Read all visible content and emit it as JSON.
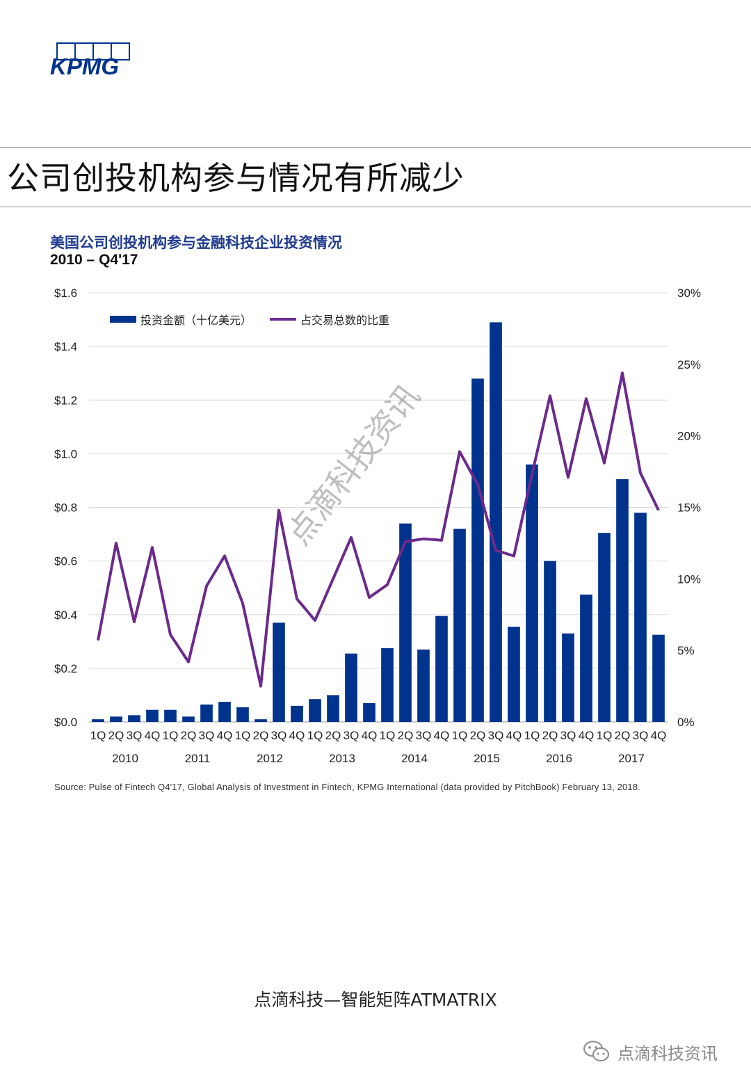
{
  "logo": {
    "text": "KPMG",
    "color": "#00338d"
  },
  "page": {
    "title": "公司创投机构参与情况有所减少"
  },
  "chart_data": {
    "type": "bar+line",
    "title": "美国公司创投机构参与金融科技企业投资情况",
    "subtitle": "2010 – Q4'17",
    "categories": [
      "1Q",
      "2Q",
      "3Q",
      "4Q",
      "1Q",
      "2Q",
      "3Q",
      "4Q",
      "1Q",
      "2Q",
      "3Q",
      "4Q",
      "1Q",
      "2Q",
      "3Q",
      "4Q",
      "1Q",
      "2Q",
      "3Q",
      "4Q",
      "1Q",
      "2Q",
      "3Q",
      "4Q",
      "1Q",
      "2Q",
      "3Q",
      "4Q",
      "1Q",
      "2Q",
      "3Q",
      "4Q"
    ],
    "years": [
      "2010",
      "2011",
      "2012",
      "2013",
      "2014",
      "2015",
      "2016",
      "2017"
    ],
    "series": [
      {
        "name": "投资金额（十亿美元）",
        "type": "bar",
        "axis": "left",
        "color": "#00338d",
        "values": [
          0.01,
          0.02,
          0.025,
          0.045,
          0.045,
          0.02,
          0.065,
          0.075,
          0.055,
          0.01,
          0.37,
          0.06,
          0.085,
          0.1,
          0.255,
          0.07,
          0.275,
          0.74,
          0.27,
          0.395,
          0.72,
          1.28,
          1.49,
          0.355,
          0.96,
          0.6,
          0.33,
          0.475,
          0.705,
          0.905,
          0.78,
          0.325
        ]
      },
      {
        "name": "占交易总数的比重",
        "type": "line",
        "axis": "right",
        "color": "#6b2a8c",
        "values": [
          5.7,
          12.5,
          7.0,
          12.2,
          6.1,
          4.2,
          9.5,
          11.6,
          8.3,
          2.5,
          14.8,
          8.6,
          7.1,
          10.0,
          12.9,
          8.7,
          9.6,
          12.6,
          12.8,
          12.7,
          18.9,
          16.6,
          12.0,
          11.6,
          17.3,
          22.8,
          17.1,
          22.6,
          18.1,
          24.4,
          17.4,
          14.8
        ]
      }
    ],
    "y_left": {
      "ylim": [
        0,
        1.6
      ],
      "ticks": [
        "$0.0",
        "$0.2",
        "$0.4",
        "$0.6",
        "$0.8",
        "$1.0",
        "$1.2",
        "$1.4",
        "$1.6"
      ]
    },
    "y_right": {
      "ylim": [
        0,
        30
      ],
      "ticks": [
        "0%",
        "5%",
        "10%",
        "15%",
        "20%",
        "25%",
        "30%"
      ]
    },
    "legend_position": "top-left",
    "grid": true
  },
  "source": "Source: Pulse of Fintech Q4'17, Global Analysis of Investment in Fintech, KPMG International (data provided by PitchBook) February 13, 2018.",
  "watermark": "点滴科技资讯",
  "footer": {
    "text": "点滴科技—智能矩阵ATMATRIX",
    "wechat_label": "点滴科技资讯"
  }
}
